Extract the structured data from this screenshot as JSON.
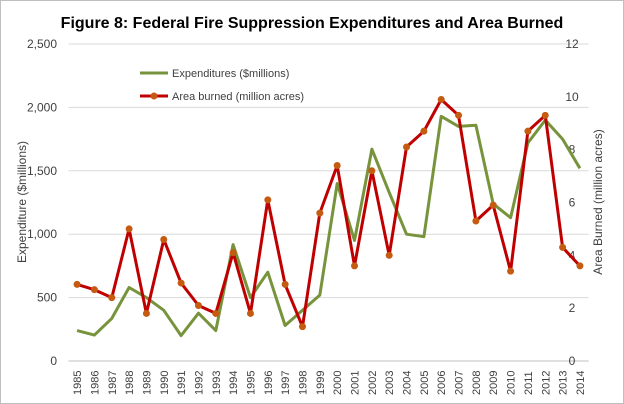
{
  "chart_data": {
    "type": "line",
    "title": "Figure 8: Federal Fire Suppression Expenditures and Area Burned",
    "xlabel": "",
    "ylabel": "Expenditure ($millions)",
    "y2label": "Area Burned (million acres)",
    "ylim": [
      0,
      2500
    ],
    "y2lim": [
      0,
      12
    ],
    "yticks": [
      "0",
      "500",
      "1,000",
      "1,500",
      "2,000",
      "2,500"
    ],
    "yticks_values": [
      0,
      500,
      1000,
      1500,
      2000,
      2500
    ],
    "y2ticks": [
      "0",
      "2",
      "4",
      "6",
      "8",
      "10",
      "12"
    ],
    "y2ticks_values": [
      0,
      2,
      4,
      6,
      8,
      10,
      12
    ],
    "grid": true,
    "legend_position": "top-left",
    "categories": [
      "1985",
      "1986",
      "1987",
      "1988",
      "1989",
      "1990",
      "1991",
      "1992",
      "1993",
      "1994",
      "1995",
      "1996",
      "1997",
      "1998",
      "1999",
      "2000",
      "2001",
      "2002",
      "2003",
      "2004",
      "2005",
      "2006",
      "2007",
      "2008",
      "2009",
      "2010",
      "2011",
      "2012",
      "2013",
      "2014"
    ],
    "series": [
      {
        "name": "Expenditures ($millions)",
        "axis": "left",
        "color": "#77933C",
        "markers": false,
        "values": [
          240,
          204,
          336,
          580,
          500,
          400,
          200,
          377,
          240,
          918,
          500,
          700,
          280,
          400,
          520,
          1400,
          950,
          1670,
          1330,
          1000,
          980,
          1930,
          1850,
          1860,
          1240,
          1130,
          1720,
          1900,
          1750,
          1520
        ]
      },
      {
        "name": "Area burned (million acres)",
        "axis": "right",
        "color": "#C00000",
        "marker_color": "#C55A11",
        "markers": true,
        "values": [
          2.9,
          2.7,
          2.4,
          5.0,
          1.8,
          4.6,
          2.95,
          2.1,
          1.8,
          4.1,
          1.8,
          6.1,
          2.9,
          1.3,
          5.6,
          7.4,
          3.6,
          7.2,
          4.0,
          8.1,
          8.7,
          9.9,
          9.3,
          5.3,
          5.9,
          3.4,
          8.7,
          9.3,
          4.3,
          3.6
        ]
      }
    ]
  }
}
